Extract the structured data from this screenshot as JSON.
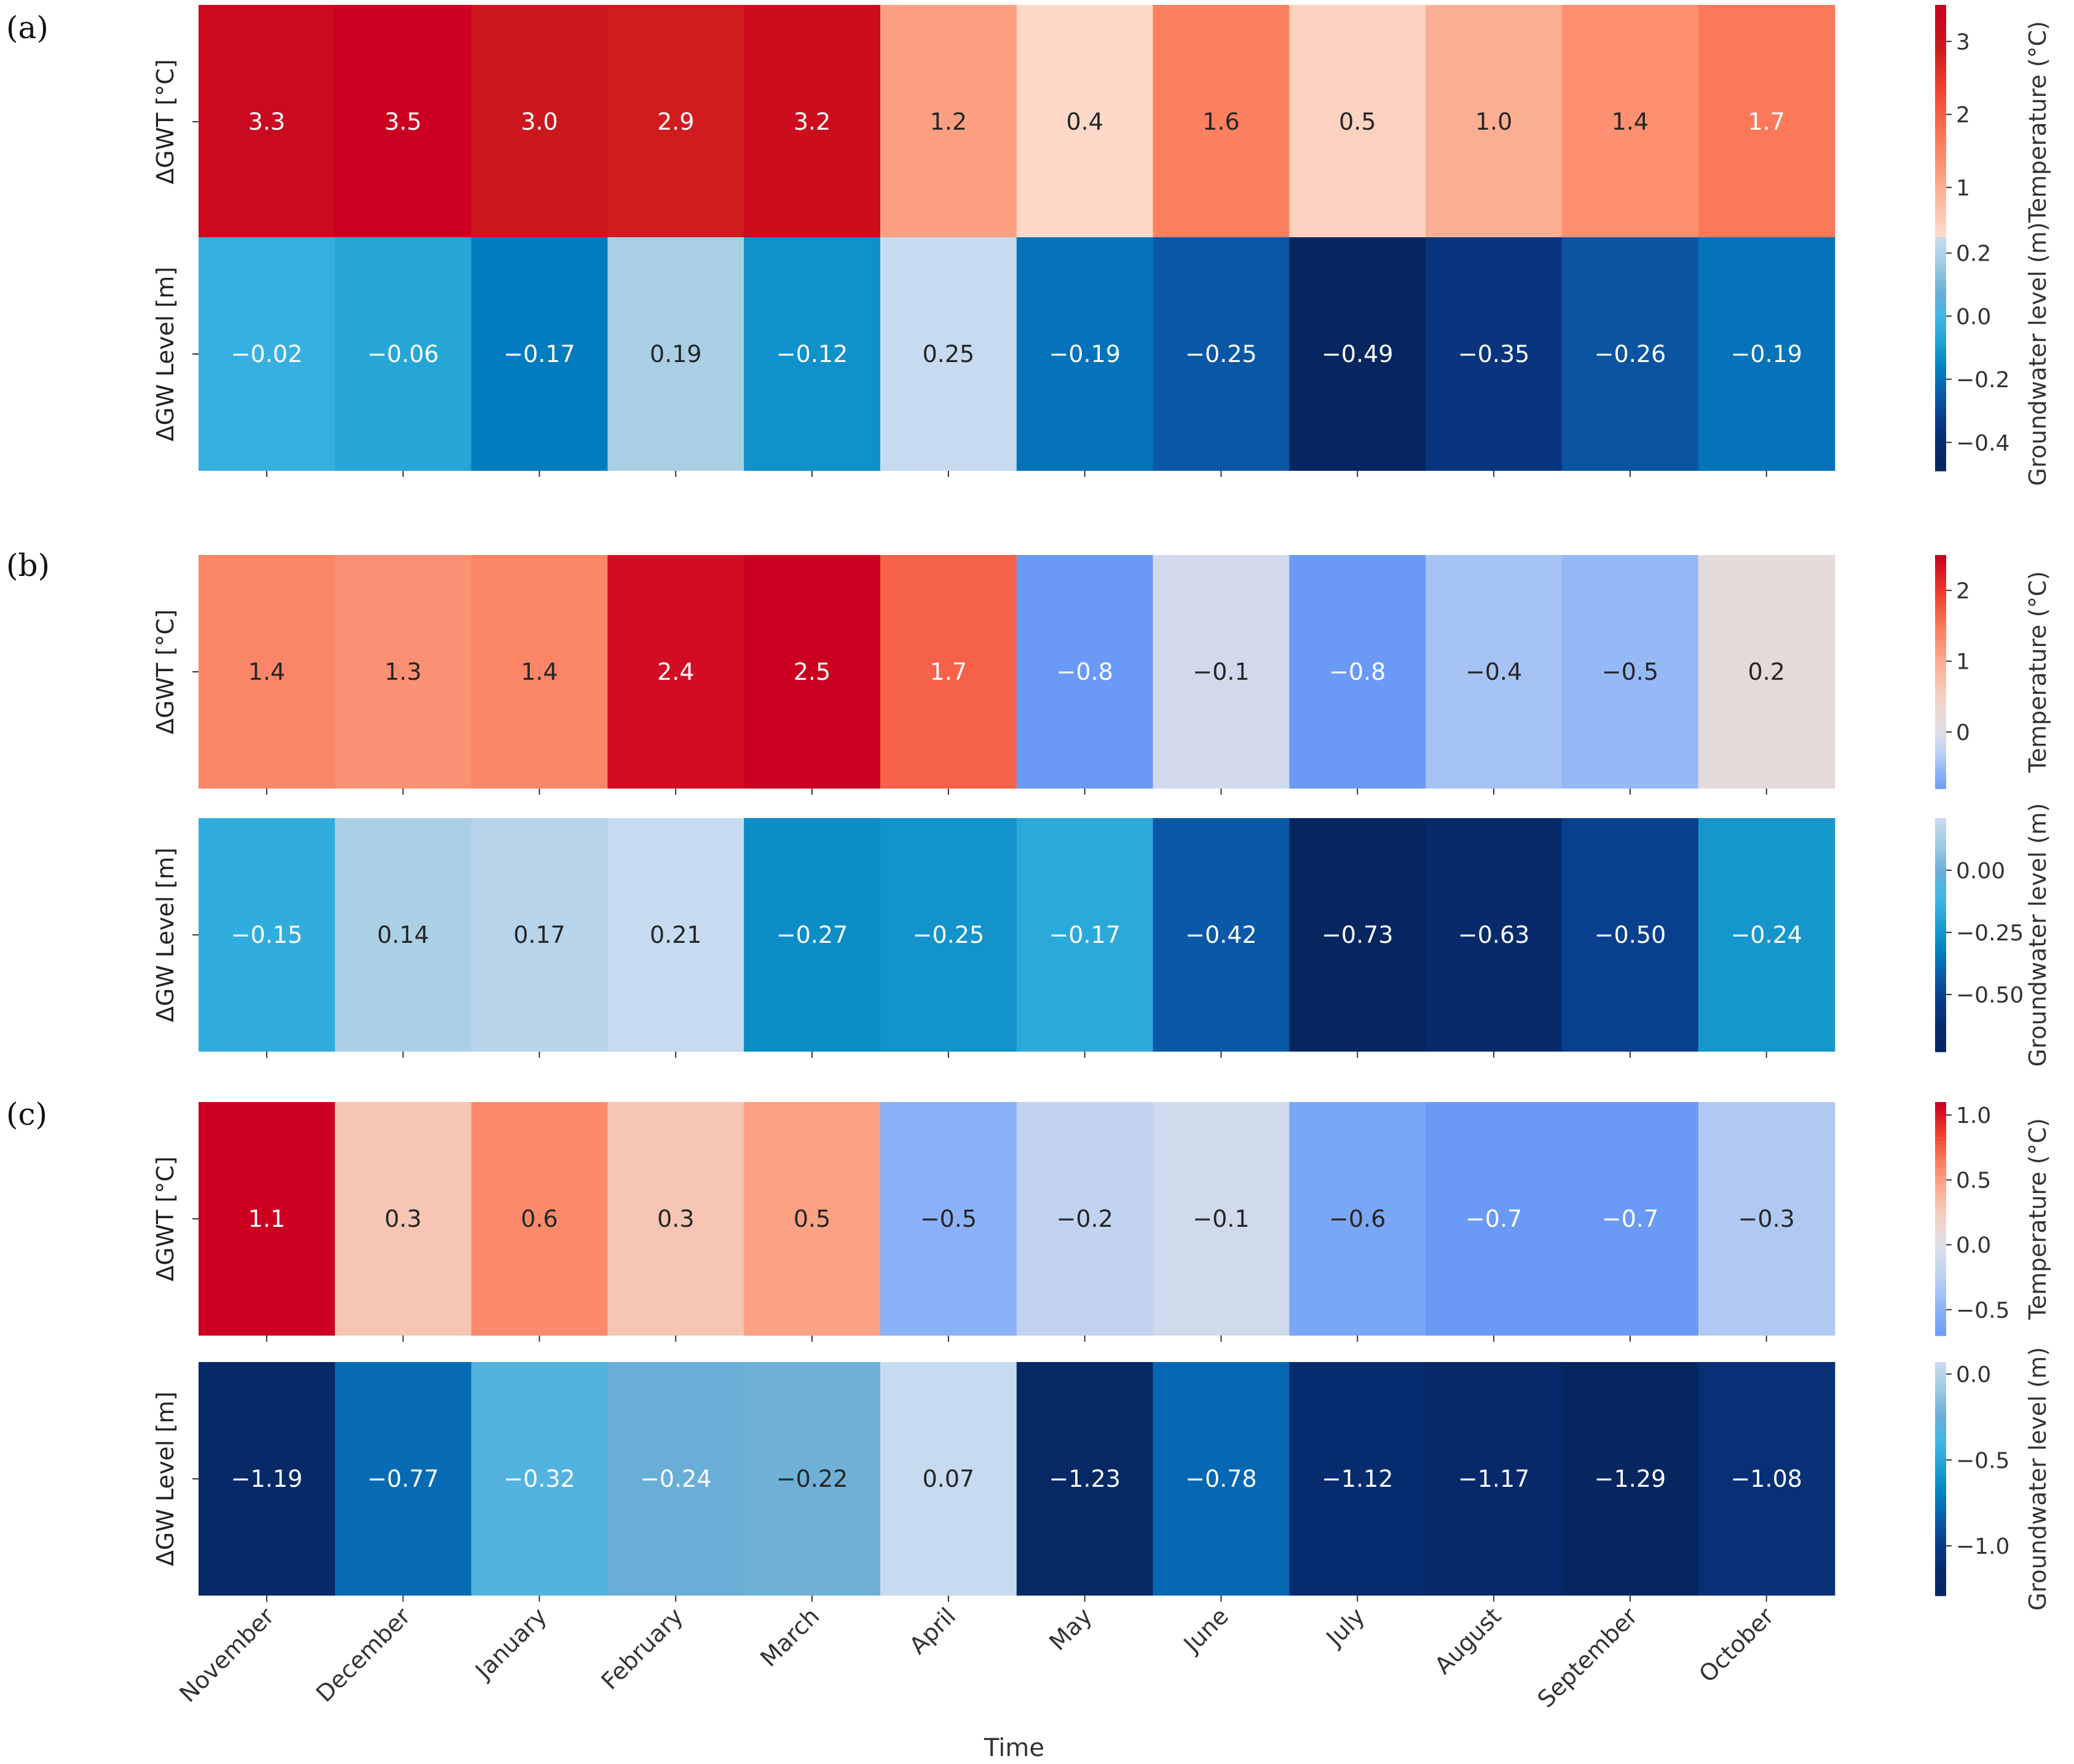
{
  "chart_data": {
    "type": "heatmap",
    "xlabel": "Time",
    "months": [
      "November",
      "December",
      "January",
      "February",
      "March",
      "April",
      "May",
      "June",
      "July",
      "August",
      "September",
      "October"
    ],
    "panels": [
      {
        "label": "(a)",
        "gwt": {
          "ylabel": "ΔGWT [°C]",
          "values": [
            "3.3",
            "3.5",
            "3.0",
            "2.9",
            "3.2",
            "1.2",
            "0.4",
            "1.6",
            "0.5",
            "1.0",
            "1.4",
            "1.7"
          ],
          "cmap": "reds",
          "clim": [
            0.3,
            3.5
          ],
          "colorbar_label": "Temperature (°C)",
          "ticks": [
            {
              "v": 1,
              "t": "1"
            },
            {
              "v": 2,
              "t": "2"
            },
            {
              "v": 3,
              "t": "3"
            }
          ]
        },
        "gwl": {
          "ylabel": "ΔGW Level [m]",
          "values": [
            "−0.02",
            "−0.06",
            "−0.17",
            "0.19",
            "−0.12",
            "0.25",
            "−0.19",
            "−0.25",
            "−0.49",
            "−0.35",
            "−0.26",
            "−0.19"
          ],
          "cmap": "blues",
          "clim": [
            -0.49,
            0.25
          ],
          "colorbar_label": "Groundwater level (m)",
          "ticks": [
            {
              "v": 0.2,
              "t": "0.2"
            },
            {
              "v": 0,
              "t": "0.0"
            },
            {
              "v": -0.2,
              "t": "−0.2"
            },
            {
              "v": -0.4,
              "t": "−0.4"
            }
          ]
        }
      },
      {
        "label": "(b)",
        "gwt": {
          "ylabel": "ΔGWT [°C]",
          "values": [
            "1.4",
            "1.3",
            "1.4",
            "2.4",
            "2.5",
            "1.7",
            "−0.8",
            "−0.1",
            "−0.8",
            "−0.4",
            "−0.5",
            "0.2"
          ],
          "cmap": "diverging",
          "clim": [
            -0.8,
            2.5
          ],
          "colorbar_label": "Temperature (°C)",
          "ticks": [
            {
              "v": 2,
              "t": "2"
            },
            {
              "v": 1,
              "t": "1"
            },
            {
              "v": 0,
              "t": "0"
            }
          ]
        },
        "gwl": {
          "ylabel": "ΔGW Level [m]",
          "values": [
            "−0.15",
            "0.14",
            "0.17",
            "0.21",
            "−0.27",
            "−0.25",
            "−0.17",
            "−0.42",
            "−0.73",
            "−0.63",
            "−0.50",
            "−0.24"
          ],
          "cmap": "blues",
          "clim": [
            -0.73,
            0.21
          ],
          "colorbar_label": "Groundwater level (m)",
          "ticks": [
            {
              "v": 0,
              "t": "0.00"
            },
            {
              "v": -0.25,
              "t": "−0.25"
            },
            {
              "v": -0.5,
              "t": "−0.50"
            }
          ]
        }
      },
      {
        "label": "(c)",
        "gwt": {
          "ylabel": "ΔGWT [°C]",
          "values": [
            "1.1",
            "0.3",
            "0.6",
            "0.3",
            "0.5",
            "−0.5",
            "−0.2",
            "−0.1",
            "−0.6",
            "−0.7",
            "−0.7",
            "−0.3"
          ],
          "cmap": "diverging",
          "clim": [
            -0.7,
            1.1
          ],
          "colorbar_label": "Temperature (°C)",
          "ticks": [
            {
              "v": 1,
              "t": "1.0"
            },
            {
              "v": 0.5,
              "t": "0.5"
            },
            {
              "v": 0,
              "t": "0.0"
            },
            {
              "v": -0.5,
              "t": "−0.5"
            }
          ]
        },
        "gwl": {
          "ylabel": "ΔGW Level [m]",
          "values": [
            "−1.19",
            "−0.77",
            "−0.32",
            "−0.24",
            "−0.22",
            "0.07",
            "−1.23",
            "−0.78",
            "−1.12",
            "−1.17",
            "−1.29",
            "−1.08"
          ],
          "cmap": "blues",
          "clim": [
            -1.29,
            0.07
          ],
          "colorbar_label": "Groundwater level (m)",
          "ticks": [
            {
              "v": 0,
              "t": "0.0"
            },
            {
              "v": -0.5,
              "t": "−0.5"
            },
            {
              "v": -1,
              "t": "−1.0"
            }
          ]
        }
      }
    ]
  }
}
